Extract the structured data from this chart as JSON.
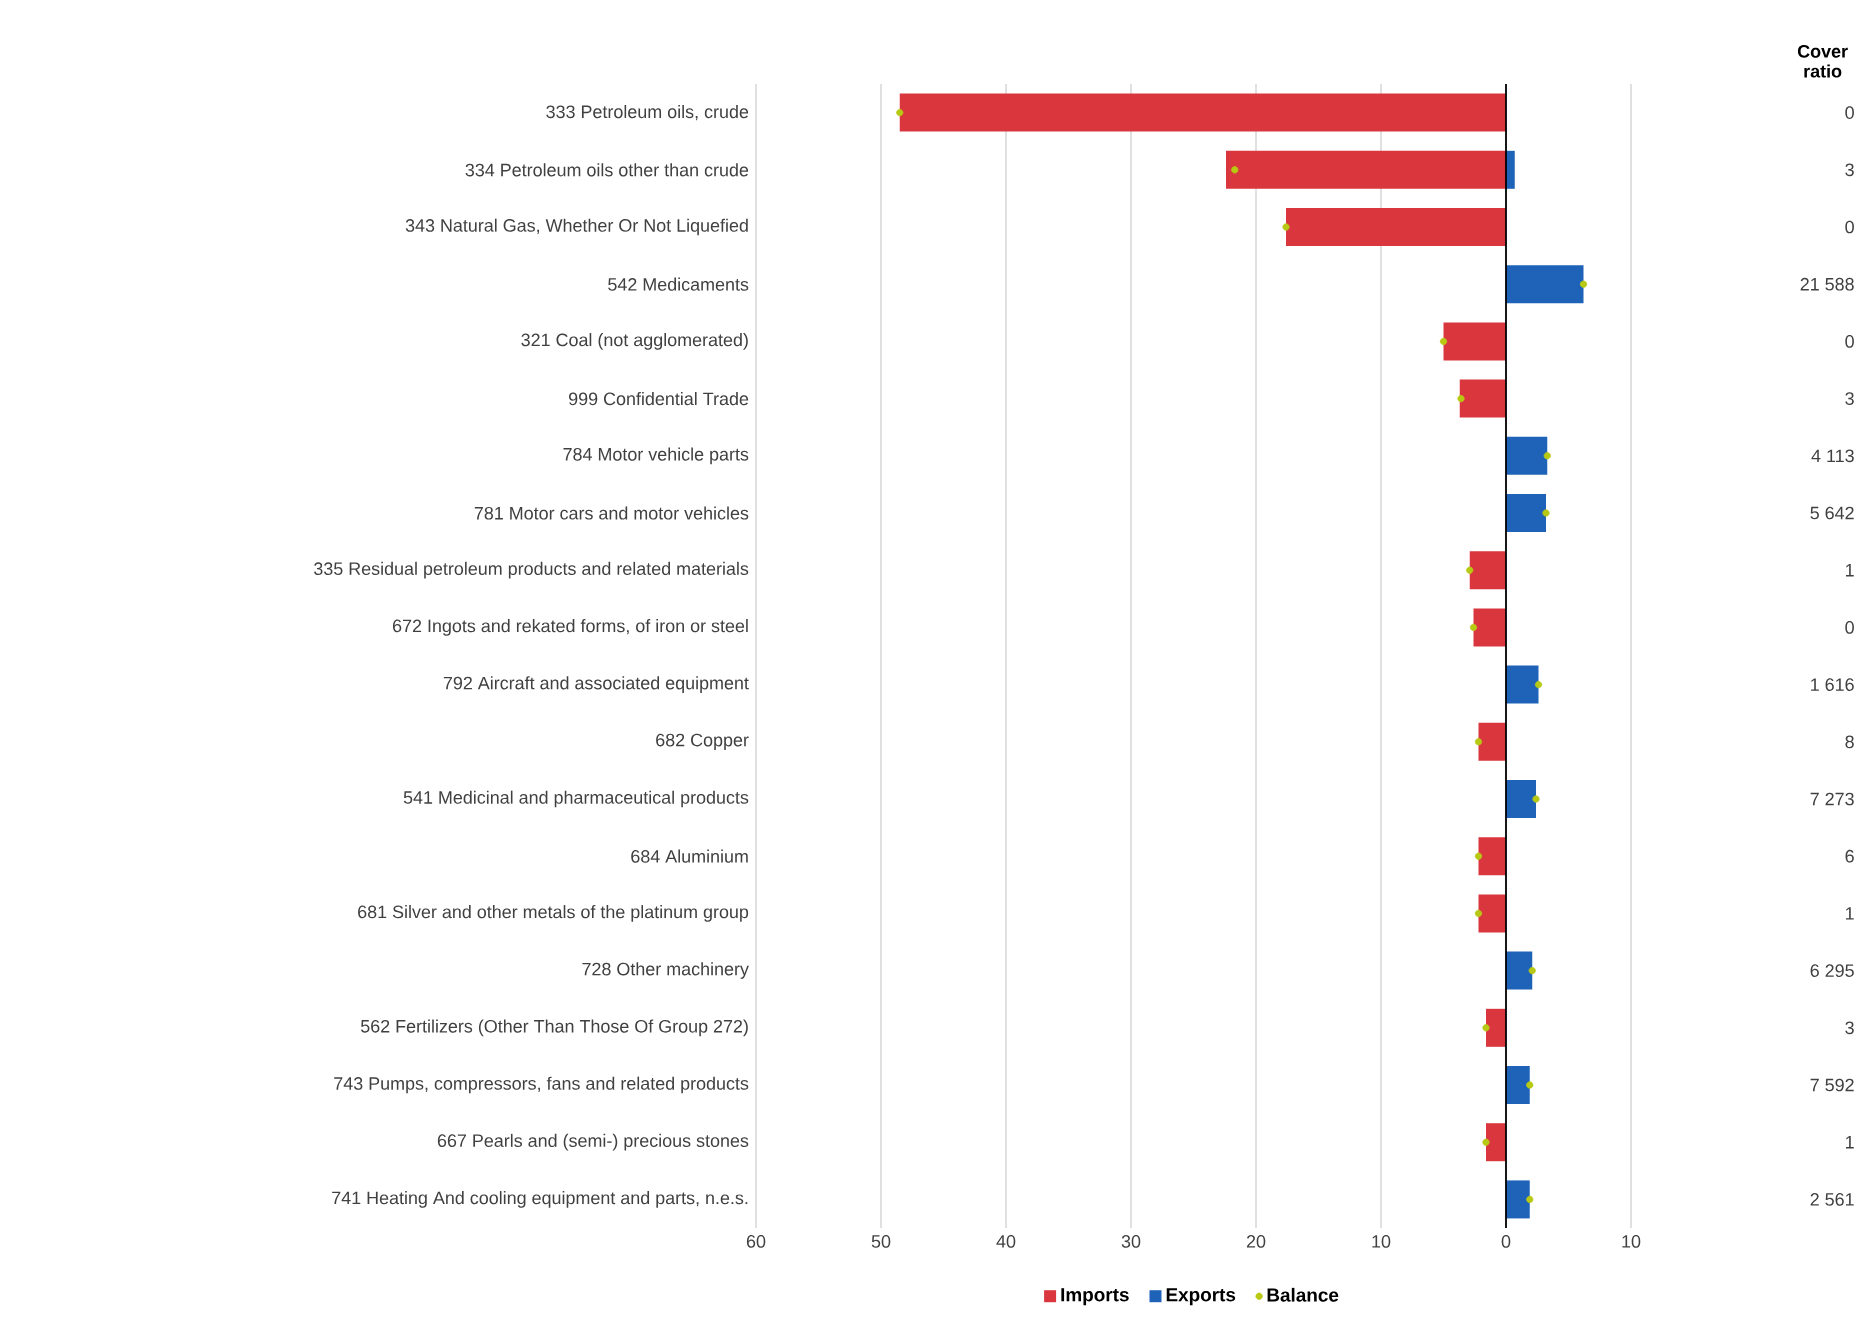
{
  "chart_data": {
    "type": "bar",
    "orientation": "horizontal",
    "categories": [
      "333 Petroleum oils, crude",
      "334 Petroleum oils other than crude",
      "343 Natural Gas, Whether Or Not Liquefied",
      "542 Medicaments",
      "321 Coal (not agglomerated)",
      "999 Confidential Trade",
      "784 Motor vehicle parts",
      "781 Motor cars and motor vehicles",
      "335 Residual petroleum products and related materials",
      "672 Ingots and rekated forms, of iron or steel",
      "792 Aircraft and associated equipment",
      "682 Copper",
      "541 Medicinal and pharmaceutical products",
      "684 Aluminium",
      "681 Silver and other metals of the platinum group",
      "728 Other machinery",
      "562 Fertilizers (Other Than Those Of Group 272)",
      "743 Pumps, compressors, fans and related products",
      "667 Pearls and (semi-) precious stones",
      "741 Heating And cooling equipment and parts, n.e.s."
    ],
    "series": [
      {
        "name": "Imports",
        "color": "#d9363e",
        "values": [
          -48.5,
          -22.4,
          -17.6,
          null,
          -5.0,
          -3.7,
          null,
          null,
          -2.9,
          -2.6,
          null,
          -2.2,
          null,
          -2.2,
          -2.2,
          null,
          -1.6,
          null,
          -1.6,
          null
        ]
      },
      {
        "name": "Exports",
        "color": "#1f63b8",
        "values": [
          null,
          0.7,
          null,
          6.2,
          null,
          null,
          3.3,
          3.2,
          null,
          null,
          2.6,
          null,
          2.4,
          null,
          null,
          2.1,
          null,
          1.9,
          null,
          1.9
        ]
      },
      {
        "name": "Balance",
        "type": "scatter",
        "color": "#b8c914",
        "values": [
          -48.5,
          -21.7,
          -17.6,
          6.2,
          -5.0,
          -3.6,
          3.3,
          3.2,
          -2.9,
          -2.6,
          2.6,
          -2.2,
          2.4,
          -2.2,
          -2.2,
          2.1,
          -1.6,
          1.9,
          -1.6,
          1.9
        ]
      }
    ],
    "xlim": [
      -60,
      10
    ],
    "xticks": [
      {
        "value": -60,
        "label": "60"
      },
      {
        "value": -50,
        "label": "50"
      },
      {
        "value": -40,
        "label": "40"
      },
      {
        "value": -30,
        "label": "30"
      },
      {
        "value": -20,
        "label": "20"
      },
      {
        "value": -10,
        "label": "10"
      },
      0,
      10
    ],
    "grid": "x",
    "legend": "bottom",
    "ref_lines": [
      {
        "axis": "x",
        "value": 0,
        "color": "#000000"
      }
    ],
    "annotations": [
      "Cover ratio",
      "0",
      "3",
      "0",
      "21 588",
      "0",
      "3",
      "4 113",
      "5 642",
      "1",
      "0",
      "1 616",
      "8",
      "7 273",
      "6",
      "1",
      "6 295",
      "3",
      "7 592",
      "1",
      "2 561"
    ]
  }
}
